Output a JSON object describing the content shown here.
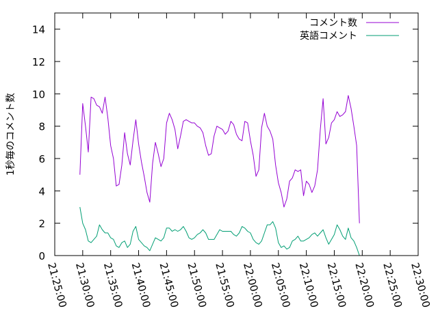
{
  "chart_data": {
    "type": "line",
    "title": "",
    "xlabel": "",
    "ylabel": "1秒毎のコメント数",
    "ylim": [
      0,
      15
    ],
    "yticks": [
      0,
      2,
      4,
      6,
      8,
      10,
      12,
      14
    ],
    "xlim": [
      "21:25:00",
      "22:30:00"
    ],
    "xticks": [
      "21:25:00",
      "21:30:00",
      "21:35:00",
      "21:40:00",
      "21:45:00",
      "21:50:00",
      "21:55:00",
      "22:00:00",
      "22:05:00",
      "22:10:00",
      "22:15:00",
      "22:20:00",
      "22:25:00",
      "22:30:00"
    ],
    "grid": false,
    "legend": "top-right",
    "series": [
      {
        "name": "コメント数",
        "color": "#9400d3",
        "points": [
          [
            "21:29:30",
            5.0
          ],
          [
            "21:30:00",
            9.4
          ],
          [
            "21:30:30",
            8.0
          ],
          [
            "21:31:00",
            6.4
          ],
          [
            "21:31:30",
            9.8
          ],
          [
            "21:32:00",
            9.7
          ],
          [
            "21:32:30",
            9.3
          ],
          [
            "21:33:00",
            9.2
          ],
          [
            "21:33:30",
            8.8
          ],
          [
            "21:34:00",
            9.8
          ],
          [
            "21:34:30",
            8.5
          ],
          [
            "21:35:00",
            6.8
          ],
          [
            "21:35:30",
            6.0
          ],
          [
            "21:36:00",
            4.3
          ],
          [
            "21:36:30",
            4.4
          ],
          [
            "21:37:00",
            5.6
          ],
          [
            "21:37:30",
            7.6
          ],
          [
            "21:38:00",
            6.3
          ],
          [
            "21:38:30",
            5.6
          ],
          [
            "21:39:00",
            7.1
          ],
          [
            "21:39:30",
            8.4
          ],
          [
            "21:40:00",
            6.9
          ],
          [
            "21:40:30",
            5.8
          ],
          [
            "21:41:00",
            4.9
          ],
          [
            "21:41:30",
            3.9
          ],
          [
            "21:42:00",
            3.3
          ],
          [
            "21:42:30",
            5.7
          ],
          [
            "21:43:00",
            7.0
          ],
          [
            "21:43:30",
            6.3
          ],
          [
            "21:44:00",
            5.5
          ],
          [
            "21:44:30",
            6.0
          ],
          [
            "21:45:00",
            8.2
          ],
          [
            "21:45:30",
            8.8
          ],
          [
            "21:46:00",
            8.4
          ],
          [
            "21:46:30",
            7.8
          ],
          [
            "21:47:00",
            6.6
          ],
          [
            "21:47:30",
            7.4
          ],
          [
            "21:48:00",
            8.3
          ],
          [
            "21:48:30",
            8.4
          ],
          [
            "21:49:00",
            8.3
          ],
          [
            "21:49:30",
            8.2
          ],
          [
            "21:50:00",
            8.2
          ],
          [
            "21:50:30",
            8.0
          ],
          [
            "21:51:00",
            7.9
          ],
          [
            "21:51:30",
            7.6
          ],
          [
            "21:52:00",
            6.8
          ],
          [
            "21:52:30",
            6.2
          ],
          [
            "21:53:00",
            6.3
          ],
          [
            "21:53:30",
            7.4
          ],
          [
            "21:54:00",
            8.0
          ],
          [
            "21:54:30",
            7.9
          ],
          [
            "21:55:00",
            7.8
          ],
          [
            "21:55:30",
            7.5
          ],
          [
            "21:56:00",
            7.7
          ],
          [
            "21:56:30",
            8.3
          ],
          [
            "21:57:00",
            8.1
          ],
          [
            "21:57:30",
            7.5
          ],
          [
            "21:58:00",
            7.2
          ],
          [
            "21:58:30",
            7.1
          ],
          [
            "21:59:00",
            8.3
          ],
          [
            "21:59:30",
            8.2
          ],
          [
            "22:00:00",
            7.1
          ],
          [
            "22:00:30",
            6.2
          ],
          [
            "22:01:00",
            4.9
          ],
          [
            "22:01:30",
            5.3
          ],
          [
            "22:02:00",
            7.9
          ],
          [
            "22:02:30",
            8.8
          ],
          [
            "22:03:00",
            8.0
          ],
          [
            "22:03:30",
            7.7
          ],
          [
            "22:04:00",
            7.2
          ],
          [
            "22:04:30",
            5.6
          ],
          [
            "22:05:00",
            4.5
          ],
          [
            "22:05:30",
            3.9
          ],
          [
            "22:06:00",
            3.0
          ],
          [
            "22:06:30",
            3.5
          ],
          [
            "22:07:00",
            4.6
          ],
          [
            "22:07:30",
            4.8
          ],
          [
            "22:08:00",
            5.3
          ],
          [
            "22:08:30",
            5.2
          ],
          [
            "22:09:00",
            5.3
          ],
          [
            "22:09:30",
            3.7
          ],
          [
            "22:10:00",
            4.6
          ],
          [
            "22:10:30",
            4.4
          ],
          [
            "22:11:00",
            3.9
          ],
          [
            "22:11:30",
            4.3
          ],
          [
            "22:12:00",
            5.3
          ],
          [
            "22:12:30",
            7.8
          ],
          [
            "22:13:00",
            9.7
          ],
          [
            "22:13:30",
            6.9
          ],
          [
            "22:14:00",
            7.3
          ],
          [
            "22:14:30",
            8.2
          ],
          [
            "22:15:00",
            8.4
          ],
          [
            "22:15:30",
            8.9
          ],
          [
            "22:16:00",
            8.6
          ],
          [
            "22:16:30",
            8.7
          ],
          [
            "22:17:00",
            8.9
          ],
          [
            "22:17:30",
            9.9
          ],
          [
            "22:18:00",
            9.1
          ],
          [
            "22:18:30",
            8.0
          ],
          [
            "22:19:00",
            6.8
          ],
          [
            "22:19:30",
            2.0
          ]
        ]
      },
      {
        "name": "英語コメント",
        "color": "#009e73",
        "points": [
          [
            "21:29:30",
            3.0
          ],
          [
            "21:30:00",
            2.0
          ],
          [
            "21:30:30",
            1.6
          ],
          [
            "21:31:00",
            0.9
          ],
          [
            "21:31:30",
            0.8
          ],
          [
            "21:32:00",
            1.0
          ],
          [
            "21:32:30",
            1.2
          ],
          [
            "21:33:00",
            1.9
          ],
          [
            "21:33:30",
            1.6
          ],
          [
            "21:34:00",
            1.4
          ],
          [
            "21:34:30",
            1.4
          ],
          [
            "21:35:00",
            1.1
          ],
          [
            "21:35:30",
            1.0
          ],
          [
            "21:36:00",
            0.6
          ],
          [
            "21:36:30",
            0.5
          ],
          [
            "21:37:00",
            0.8
          ],
          [
            "21:37:30",
            0.9
          ],
          [
            "21:38:00",
            0.5
          ],
          [
            "21:38:30",
            0.7
          ],
          [
            "21:39:00",
            1.5
          ],
          [
            "21:39:30",
            1.8
          ],
          [
            "21:40:00",
            1.0
          ],
          [
            "21:40:30",
            0.8
          ],
          [
            "21:41:00",
            0.6
          ],
          [
            "21:41:30",
            0.5
          ],
          [
            "21:42:00",
            0.3
          ],
          [
            "21:42:30",
            0.7
          ],
          [
            "21:43:00",
            1.1
          ],
          [
            "21:43:30",
            1.0
          ],
          [
            "21:44:00",
            0.9
          ],
          [
            "21:44:30",
            1.1
          ],
          [
            "21:45:00",
            1.7
          ],
          [
            "21:45:30",
            1.7
          ],
          [
            "21:46:00",
            1.5
          ],
          [
            "21:46:30",
            1.6
          ],
          [
            "21:47:00",
            1.5
          ],
          [
            "21:47:30",
            1.6
          ],
          [
            "21:48:00",
            1.8
          ],
          [
            "21:48:30",
            1.5
          ],
          [
            "21:49:00",
            1.1
          ],
          [
            "21:49:30",
            1.0
          ],
          [
            "21:50:00",
            1.1
          ],
          [
            "21:50:30",
            1.3
          ],
          [
            "21:51:00",
            1.4
          ],
          [
            "21:51:30",
            1.6
          ],
          [
            "21:52:00",
            1.4
          ],
          [
            "21:52:30",
            1.0
          ],
          [
            "21:53:00",
            1.0
          ],
          [
            "21:53:30",
            1.0
          ],
          [
            "21:54:00",
            1.3
          ],
          [
            "21:54:30",
            1.6
          ],
          [
            "21:55:00",
            1.5
          ],
          [
            "21:55:30",
            1.5
          ],
          [
            "21:56:00",
            1.5
          ],
          [
            "21:56:30",
            1.5
          ],
          [
            "21:57:00",
            1.3
          ],
          [
            "21:57:30",
            1.2
          ],
          [
            "21:58:00",
            1.4
          ],
          [
            "21:58:30",
            1.8
          ],
          [
            "21:59:00",
            1.7
          ],
          [
            "21:59:30",
            1.5
          ],
          [
            "22:00:00",
            1.4
          ],
          [
            "22:00:30",
            1.0
          ],
          [
            "22:01:00",
            0.8
          ],
          [
            "22:01:30",
            0.7
          ],
          [
            "22:02:00",
            0.9
          ],
          [
            "22:02:30",
            1.4
          ],
          [
            "22:03:00",
            1.9
          ],
          [
            "22:03:30",
            1.9
          ],
          [
            "22:04:00",
            2.1
          ],
          [
            "22:04:30",
            1.7
          ],
          [
            "22:05:00",
            0.8
          ],
          [
            "22:05:30",
            0.5
          ],
          [
            "22:06:00",
            0.6
          ],
          [
            "22:06:30",
            0.4
          ],
          [
            "22:07:00",
            0.5
          ],
          [
            "22:07:30",
            0.9
          ],
          [
            "22:08:00",
            1.0
          ],
          [
            "22:08:30",
            1.2
          ],
          [
            "22:09:00",
            0.9
          ],
          [
            "22:09:30",
            0.9
          ],
          [
            "22:10:00",
            1.0
          ],
          [
            "22:10:30",
            1.1
          ],
          [
            "22:11:00",
            1.3
          ],
          [
            "22:11:30",
            1.4
          ],
          [
            "22:12:00",
            1.2
          ],
          [
            "22:12:30",
            1.4
          ],
          [
            "22:13:00",
            1.6
          ],
          [
            "22:13:30",
            1.1
          ],
          [
            "22:14:00",
            0.7
          ],
          [
            "22:14:30",
            1.0
          ],
          [
            "22:15:00",
            1.3
          ],
          [
            "22:15:30",
            1.9
          ],
          [
            "22:16:00",
            1.6
          ],
          [
            "22:16:30",
            1.2
          ],
          [
            "22:17:00",
            1.0
          ],
          [
            "22:17:30",
            1.7
          ],
          [
            "22:18:00",
            1.1
          ],
          [
            "22:18:30",
            0.9
          ],
          [
            "22:19:00",
            0.5
          ],
          [
            "22:19:30",
            0.0
          ]
        ]
      }
    ]
  }
}
